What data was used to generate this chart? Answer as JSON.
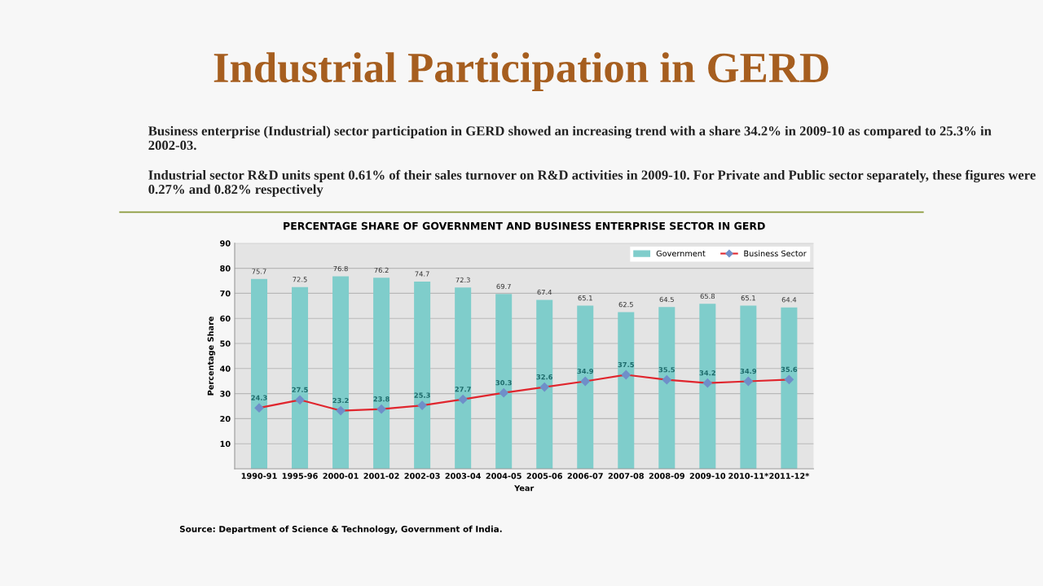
{
  "chart_data": {
    "type": "bar",
    "title": "Industrial Participation in GERD",
    "subtitle": "PERCENTAGE SHARE OF GOVERNMENT AND BUSINESS ENTERPRISE SECTOR IN GERD",
    "xlabel": "Year",
    "ylabel": "Percentage Share",
    "annotations": [
      "Business enterprise (Industrial) sector participation in GERD showed an increasing trend with a share 34.2% in 2009-10 as compared to 25.3% in 2002-03.",
      "Industrial sector R&D units spent 0.61% of their sales turnover on R&D activities in 2009-10. For Private and Public sector separately, these figures were 0.27% and 0.82% respectively",
      "Source: Department of Science & Technology, Government of India."
    ],
    "categories": [
      "1990-91",
      "1995-96",
      "2000-01",
      "2001-02",
      "2002-03",
      "2003-04",
      "2004-05",
      "2005-06",
      "2006-07",
      "2007-08",
      "2008-09",
      "2009-10",
      "2010-11*",
      "2011-12*"
    ],
    "series": [
      {
        "name": "Government",
        "color": "#7fcdcb",
        "values": [
          75.7,
          72.5,
          76.8,
          76.2,
          74.7,
          72.3,
          69.7,
          67.4,
          65.1,
          62.5,
          64.5,
          65.8,
          65.1,
          64.4
        ]
      },
      {
        "name": "Business Sector",
        "type": "line",
        "color": "#e0262e",
        "marker": "diamond",
        "values": [
          24.3,
          27.5,
          23.2,
          23.8,
          25.3,
          27.7,
          30.3,
          32.6,
          34.9,
          37.5,
          35.5,
          34.2,
          34.9,
          35.6
        ]
      }
    ],
    "ylim": [
      0,
      90
    ],
    "yticks": [
      10,
      20,
      30,
      40,
      50,
      60,
      70,
      80,
      90
    ],
    "grid": "y",
    "legend": "top right",
    "data_labels": true
  }
}
